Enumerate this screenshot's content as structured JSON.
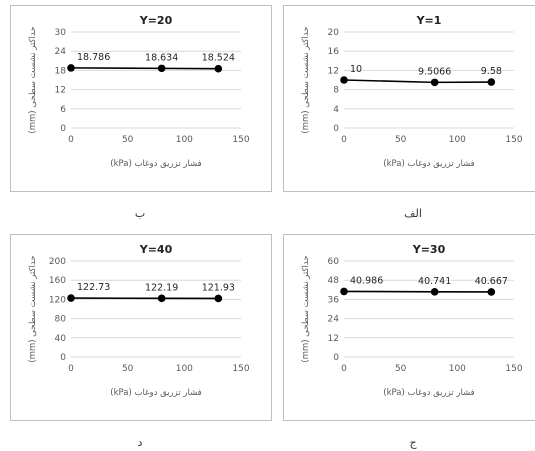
{
  "chart_data": [
    {
      "id": "p1",
      "type": "line",
      "title": "Y=1",
      "caption": "الف",
      "xlabel": "فشار تزریق دوغاب (kPa)",
      "ylabel": "حداکثر نشست سطحی (mm)",
      "xlim": [
        0,
        150
      ],
      "ylim": [
        0,
        20
      ],
      "xticks": [
        "0",
        "50",
        "100",
        "150"
      ],
      "yticks": [
        "0",
        "4",
        "8",
        "12",
        "16",
        "20"
      ],
      "x": [
        0,
        80,
        130
      ],
      "values": [
        10,
        9.5066,
        9.58
      ],
      "labels": [
        "10",
        "9.5066",
        "9.58"
      ]
    },
    {
      "id": "p2",
      "type": "line",
      "title": "Y=20",
      "caption": "ب",
      "xlabel": "فشار تزریق دوغاب (kPa)",
      "ylabel": "حداکثر نشست سطحی (mm)",
      "xlim": [
        0,
        150
      ],
      "ylim": [
        0,
        30
      ],
      "xticks": [
        "0",
        "50",
        "100",
        "150"
      ],
      "yticks": [
        "0",
        "6",
        "12",
        "18",
        "24",
        "30"
      ],
      "x": [
        0,
        80,
        130
      ],
      "values": [
        18.786,
        18.634,
        18.524
      ],
      "labels": [
        "18.786",
        "18.634",
        "18.524"
      ]
    },
    {
      "id": "p3",
      "type": "line",
      "title": "Y=30",
      "caption": "ج",
      "xlabel": "فشار تزریق دوغاب (kPa)",
      "ylabel": "حداکثر نشست سطحی (mm)",
      "xlim": [
        0,
        150
      ],
      "ylim": [
        0,
        60
      ],
      "xticks": [
        "0",
        "50",
        "100",
        "150"
      ],
      "yticks": [
        "0",
        "12",
        "24",
        "36",
        "48",
        "60"
      ],
      "x": [
        0,
        80,
        130
      ],
      "values": [
        40.986,
        40.741,
        40.667
      ],
      "labels": [
        "40.986",
        "40.741",
        "40.667"
      ]
    },
    {
      "id": "p4",
      "type": "line",
      "title": "Y=40",
      "caption": "د",
      "xlabel": "فشار تزریق دوغاب (kPa)",
      "ylabel": "حداکثر نشست سطحی (mm)",
      "xlim": [
        0,
        150
      ],
      "ylim": [
        0,
        200
      ],
      "xticks": [
        "0",
        "50",
        "100",
        "150"
      ],
      "yticks": [
        "0",
        "40",
        "80",
        "120",
        "160",
        "200"
      ],
      "x": [
        0,
        80,
        130
      ],
      "values": [
        122.73,
        122.19,
        121.93
      ],
      "labels": [
        "122.73",
        "122.19",
        "121.93"
      ]
    }
  ],
  "colors": {
    "grid": "#d9d9d9",
    "line": "#000000",
    "marker": "#000000",
    "border": "#bfbfbf"
  }
}
